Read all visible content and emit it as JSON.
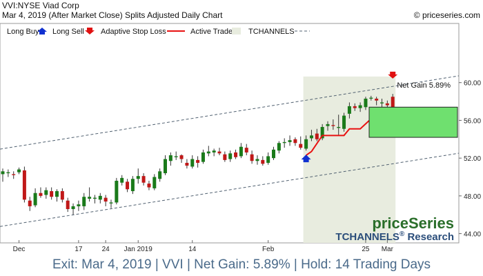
{
  "header": {
    "title": "VVI:NYSE Viad Corp",
    "subtitle": "Mar 4, 2019 (After Market Close)  Splits Adjusted Daily Chart",
    "copyright": "© priceseries.com"
  },
  "legend": {
    "long_buy": "Long Buy",
    "long_sell": "Long Sell",
    "adaptive_stop": "Adaptive Stop Loss",
    "active_trade": "Active Trade",
    "tchannels": "TCHANNELS"
  },
  "annotations": {
    "net_gain_box": "Net Gain 5.89%",
    "brand_price": "priceSeries",
    "brand_tchannels": "TCHANNELS",
    "brand_reg": "®",
    "brand_research": " Research"
  },
  "footer": {
    "text": "Exit: Mar 4, 2019 | VVI | Net Gain: 5.89% | Hold: 14 Trading Days"
  },
  "colors": {
    "up_candle": "#1a7a1a",
    "down_candle": "#c01818",
    "stop_line": "#e81010",
    "active_shade": "#e8ecdf",
    "gain_box": "#6fe06f",
    "buy_arrow": "#1030d0",
    "sell_arrow": "#e01010",
    "channel": "#506070"
  },
  "chart_data": {
    "type": "candlestick",
    "y_ticks": [
      "60.00",
      "56.00",
      "52.00",
      "48.00",
      "44.00"
    ],
    "y_tick_values": [
      60,
      56,
      52,
      48,
      44
    ],
    "ylim": [
      42.8,
      64.0
    ],
    "x_ticks": [
      {
        "label": "Dec",
        "index": 3
      },
      {
        "label": "17",
        "index": 14
      },
      {
        "label": "24",
        "index": 19
      },
      {
        "label": "Jan 2019",
        "index": 25
      },
      {
        "label": "14",
        "index": 35
      },
      {
        "label": "Feb",
        "index": 49
      },
      {
        "label": "25",
        "index": 67
      },
      {
        "label": "Mar",
        "index": 71
      }
    ],
    "candles": [
      {
        "o": 50.3,
        "h": 50.9,
        "l": 49.5,
        "c": 50.6
      },
      {
        "o": 50.4,
        "h": 50.8,
        "l": 50.0,
        "c": 50.5
      },
      {
        "o": 50.3,
        "h": 50.6,
        "l": 49.8,
        "c": 50.2
      },
      {
        "o": 50.5,
        "h": 51.0,
        "l": 50.3,
        "c": 50.8
      },
      {
        "o": 50.7,
        "h": 51.1,
        "l": 47.3,
        "c": 47.6
      },
      {
        "o": 47.5,
        "h": 47.9,
        "l": 46.4,
        "c": 46.9
      },
      {
        "o": 47.0,
        "h": 48.8,
        "l": 46.8,
        "c": 48.3
      },
      {
        "o": 48.3,
        "h": 48.9,
        "l": 47.8,
        "c": 48.0
      },
      {
        "o": 48.1,
        "h": 48.9,
        "l": 47.7,
        "c": 48.6
      },
      {
        "o": 48.5,
        "h": 48.9,
        "l": 47.6,
        "c": 47.9
      },
      {
        "o": 47.9,
        "h": 48.7,
        "l": 47.4,
        "c": 48.5
      },
      {
        "o": 48.5,
        "h": 48.8,
        "l": 47.3,
        "c": 47.6
      },
      {
        "o": 47.5,
        "h": 47.8,
        "l": 46.3,
        "c": 46.6
      },
      {
        "o": 46.6,
        "h": 47.2,
        "l": 46.0,
        "c": 46.9
      },
      {
        "o": 46.9,
        "h": 47.5,
        "l": 46.4,
        "c": 47.1
      },
      {
        "o": 46.9,
        "h": 48.3,
        "l": 46.5,
        "c": 47.9
      },
      {
        "o": 47.7,
        "h": 48.9,
        "l": 47.4,
        "c": 47.9
      },
      {
        "o": 47.7,
        "h": 48.1,
        "l": 47.2,
        "c": 47.8
      },
      {
        "o": 47.6,
        "h": 48.3,
        "l": 47.2,
        "c": 48.0
      },
      {
        "o": 47.8,
        "h": 48.1,
        "l": 46.9,
        "c": 47.4
      },
      {
        "o": 47.2,
        "h": 47.6,
        "l": 46.7,
        "c": 47.3
      },
      {
        "o": 47.3,
        "h": 49.9,
        "l": 47.1,
        "c": 49.6
      },
      {
        "o": 49.4,
        "h": 50.2,
        "l": 49.1,
        "c": 49.9
      },
      {
        "o": 49.5,
        "h": 49.8,
        "l": 48.4,
        "c": 48.7
      },
      {
        "o": 48.5,
        "h": 50.1,
        "l": 48.2,
        "c": 49.8
      },
      {
        "o": 49.8,
        "h": 50.9,
        "l": 49.3,
        "c": 50.1
      },
      {
        "o": 50.1,
        "h": 50.4,
        "l": 49.1,
        "c": 49.4
      },
      {
        "o": 49.3,
        "h": 49.6,
        "l": 48.6,
        "c": 48.9
      },
      {
        "o": 48.8,
        "h": 50.3,
        "l": 48.6,
        "c": 50.0
      },
      {
        "o": 49.8,
        "h": 50.9,
        "l": 49.5,
        "c": 50.6
      },
      {
        "o": 50.4,
        "h": 52.3,
        "l": 50.2,
        "c": 51.9
      },
      {
        "o": 51.7,
        "h": 52.6,
        "l": 51.2,
        "c": 52.3
      },
      {
        "o": 52.1,
        "h": 52.7,
        "l": 51.8,
        "c": 52.2
      },
      {
        "o": 52.3,
        "h": 52.4,
        "l": 51.5,
        "c": 51.9
      },
      {
        "o": 51.5,
        "h": 51.9,
        "l": 50.9,
        "c": 51.2
      },
      {
        "o": 51.1,
        "h": 52.3,
        "l": 50.9,
        "c": 51.9
      },
      {
        "o": 51.8,
        "h": 52.2,
        "l": 51.0,
        "c": 51.5
      },
      {
        "o": 51.6,
        "h": 52.9,
        "l": 51.4,
        "c": 52.6
      },
      {
        "o": 52.5,
        "h": 53.3,
        "l": 52.2,
        "c": 52.7
      },
      {
        "o": 52.6,
        "h": 53.0,
        "l": 52.2,
        "c": 52.8
      },
      {
        "o": 52.7,
        "h": 53.1,
        "l": 52.3,
        "c": 52.5
      },
      {
        "o": 52.4,
        "h": 52.7,
        "l": 51.6,
        "c": 51.8
      },
      {
        "o": 51.9,
        "h": 52.8,
        "l": 51.6,
        "c": 52.5
      },
      {
        "o": 52.6,
        "h": 52.9,
        "l": 51.9,
        "c": 52.1
      },
      {
        "o": 52.2,
        "h": 53.6,
        "l": 52.0,
        "c": 53.2
      },
      {
        "o": 53.1,
        "h": 53.5,
        "l": 52.3,
        "c": 52.6
      },
      {
        "o": 52.4,
        "h": 52.8,
        "l": 51.4,
        "c": 51.7
      },
      {
        "o": 51.7,
        "h": 52.3,
        "l": 51.3,
        "c": 51.9
      },
      {
        "o": 51.8,
        "h": 52.2,
        "l": 51.2,
        "c": 51.4
      },
      {
        "o": 51.5,
        "h": 52.6,
        "l": 51.3,
        "c": 52.2
      },
      {
        "o": 52.0,
        "h": 53.2,
        "l": 51.8,
        "c": 52.9
      },
      {
        "o": 52.8,
        "h": 53.8,
        "l": 52.5,
        "c": 53.6
      },
      {
        "o": 53.6,
        "h": 54.1,
        "l": 53.1,
        "c": 53.7
      },
      {
        "o": 53.7,
        "h": 54.4,
        "l": 53.3,
        "c": 53.9
      },
      {
        "o": 54.0,
        "h": 54.2,
        "l": 53.3,
        "c": 53.6
      },
      {
        "o": 53.5,
        "h": 54.3,
        "l": 52.9,
        "c": 53.1
      },
      {
        "o": 53.0,
        "h": 54.4,
        "l": 52.8,
        "c": 54.0
      },
      {
        "o": 54.1,
        "h": 55.0,
        "l": 53.8,
        "c": 54.4
      },
      {
        "o": 54.6,
        "h": 55.1,
        "l": 53.8,
        "c": 54.0
      },
      {
        "o": 54.1,
        "h": 55.6,
        "l": 53.9,
        "c": 55.3
      },
      {
        "o": 55.4,
        "h": 55.9,
        "l": 54.9,
        "c": 55.6
      },
      {
        "o": 55.5,
        "h": 56.1,
        "l": 55.0,
        "c": 55.4
      },
      {
        "o": 55.2,
        "h": 56.6,
        "l": 54.4,
        "c": 55.3
      },
      {
        "o": 55.1,
        "h": 56.8,
        "l": 54.8,
        "c": 56.5
      },
      {
        "o": 56.7,
        "h": 57.9,
        "l": 56.2,
        "c": 57.5
      },
      {
        "o": 57.5,
        "h": 57.8,
        "l": 57.0,
        "c": 57.3
      },
      {
        "o": 57.3,
        "h": 57.9,
        "l": 56.9,
        "c": 57.6
      },
      {
        "o": 57.4,
        "h": 58.5,
        "l": 57.1,
        "c": 58.3
      },
      {
        "o": 58.3,
        "h": 58.6,
        "l": 58.1,
        "c": 58.4
      },
      {
        "o": 58.3,
        "h": 58.5,
        "l": 57.6,
        "c": 58.1
      },
      {
        "o": 57.8,
        "h": 58.3,
        "l": 57.3,
        "c": 57.9
      },
      {
        "o": 57.8,
        "h": 58.1,
        "l": 57.4,
        "c": 57.6
      },
      {
        "o": 58.5,
        "h": 58.8,
        "l": 56.9,
        "c": 57.3
      }
    ],
    "stop_loss": [
      {
        "index": 56,
        "value": 52.3
      },
      {
        "index": 57,
        "value": 52.7
      },
      {
        "index": 59,
        "value": 54.4
      },
      {
        "index": 63,
        "value": 54.4
      },
      {
        "index": 64,
        "value": 55.1
      },
      {
        "index": 66,
        "value": 55.1
      },
      {
        "index": 69,
        "value": 56.7
      },
      {
        "index": 71,
        "value": 57.0
      },
      {
        "index": 72,
        "value": 57.0
      }
    ],
    "upper_channel": [
      {
        "index": 0,
        "value": 53.0
      },
      {
        "index": 72,
        "value": 59.6
      }
    ],
    "lower_channel": [
      {
        "index": 0,
        "value": 44.8
      },
      {
        "index": 72,
        "value": 51.4
      }
    ],
    "active_trade_start_index": 56,
    "active_trade_end_index": 72,
    "active_trade_top": 60.5,
    "buy_signal": {
      "index": 56,
      "value": 52.0
    },
    "sell_signal": {
      "index": 72,
      "value": 60.5
    },
    "gain_box": {
      "from": 54.2,
      "to": 57.4
    }
  }
}
